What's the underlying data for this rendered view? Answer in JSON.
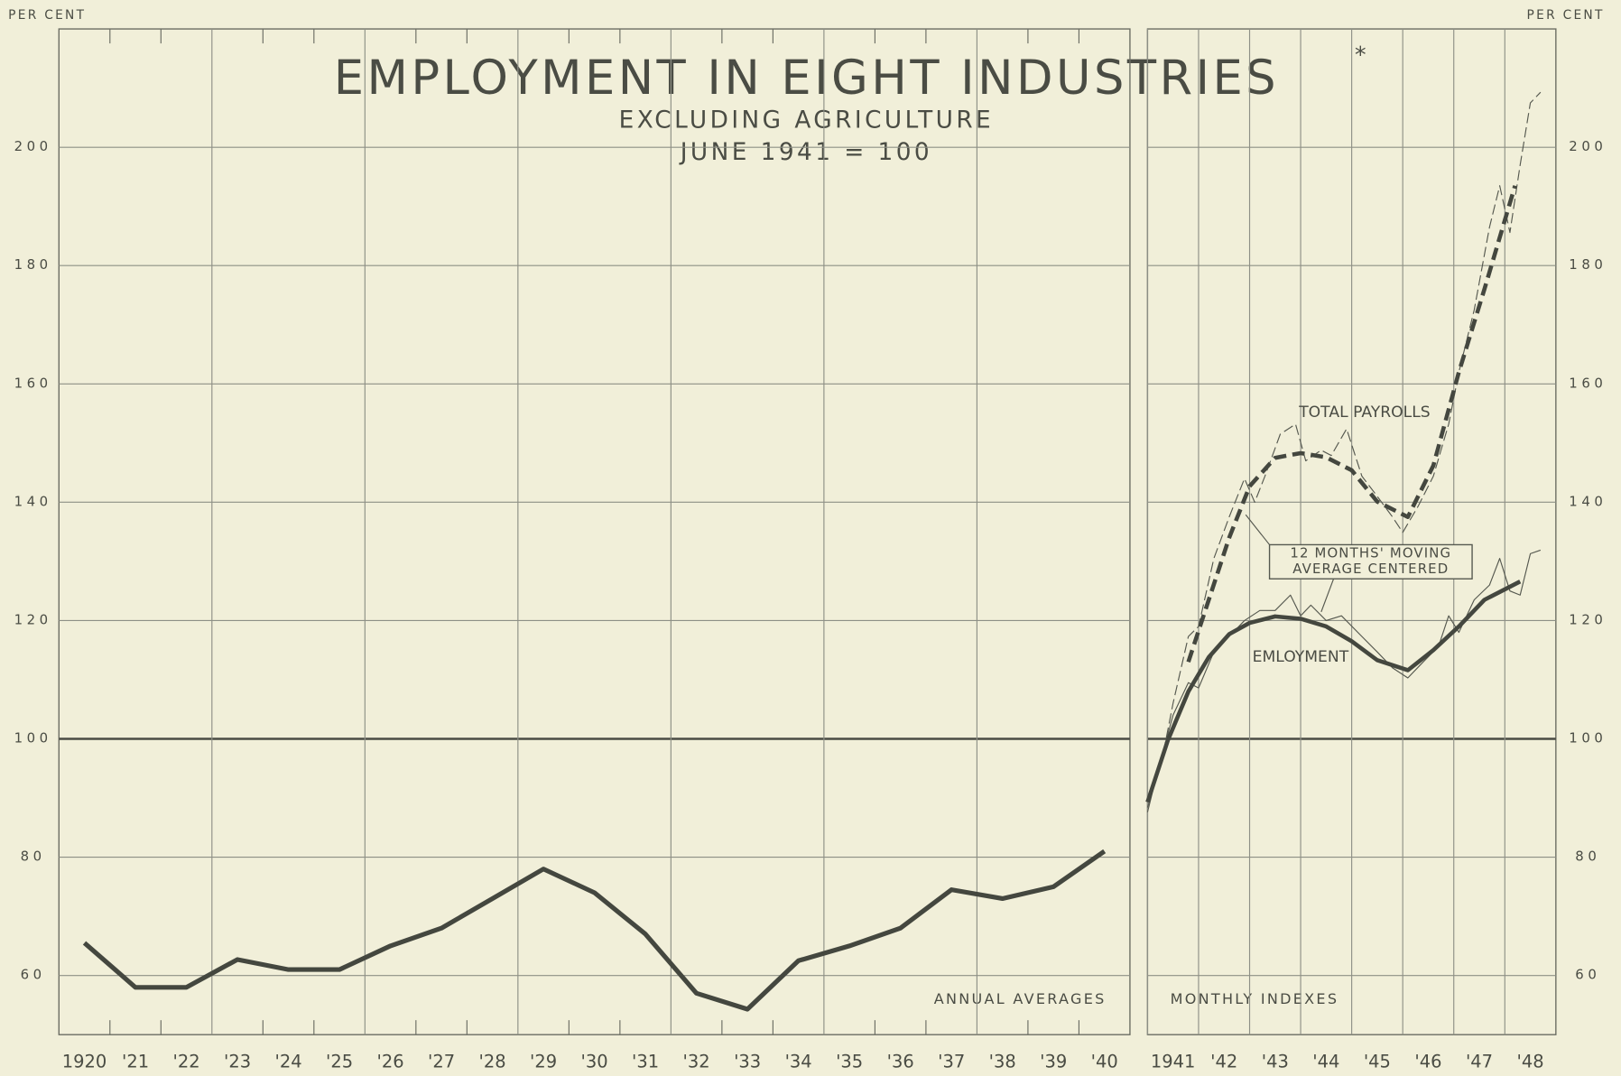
{
  "header": {
    "title": "EMPLOYMENT IN EIGHT INDUSTRIES",
    "title_mark": "*",
    "subtitle": "EXCLUDING AGRICULTURE",
    "base": "JUNE 1941 = 100"
  },
  "chart_data": [
    {
      "type": "line",
      "y_label": "PER CENT",
      "note": "ANNUAL AVERAGES",
      "color": "#44473f",
      "categories": [
        "1920",
        "'21",
        "'22",
        "'23",
        "'24",
        "'25",
        "'26",
        "'27",
        "'28",
        "'29",
        "'30",
        "'31",
        "'32",
        "'33",
        "'34",
        "'35",
        "'36",
        "'37",
        "'38",
        "'39",
        "'40"
      ],
      "values": [
        65.5,
        58,
        58,
        62.7,
        61,
        61,
        65,
        68,
        73,
        78,
        74,
        67,
        57,
        54.3,
        62.5,
        65,
        68,
        74.5,
        73,
        75,
        81
      ],
      "ylim": [
        50,
        220
      ],
      "yticks": [
        60,
        80,
        100,
        120,
        140,
        160,
        180,
        200
      ],
      "grid": true,
      "reference": 100
    },
    {
      "type": "line",
      "y_label": "PER CENT",
      "note": "MONTHLY INDEXES",
      "annotation": [
        "12 MONTHS' MOVING",
        "AVERAGE CENTERED"
      ],
      "xlim": [
        1941,
        1949
      ],
      "xticks": [
        {
          "value": 1941,
          "label": "1941"
        },
        {
          "value": 1942,
          "label": "'42"
        },
        {
          "value": 1943,
          "label": "'43"
        },
        {
          "value": 1944,
          "label": "'44"
        },
        {
          "value": 1945,
          "label": "'45"
        },
        {
          "value": 1946,
          "label": "'46"
        },
        {
          "value": 1947,
          "label": "'47"
        },
        {
          "value": 1948,
          "label": "'48"
        }
      ],
      "ylim": [
        50,
        220
      ],
      "yticks": [
        60,
        80,
        100,
        120,
        140,
        160,
        180,
        200
      ],
      "grid": true,
      "reference": 100,
      "series": [
        {
          "name": "TOTAL PAYROLLS",
          "color": "#55584f",
          "line_style": "dashed",
          "line_width": 1,
          "x": [
            1941.0,
            1941.3,
            1941.5,
            1941.8,
            1942.0,
            1942.3,
            1942.6,
            1942.9,
            1943.1,
            1943.3,
            1943.6,
            1943.9,
            1944.1,
            1944.4,
            1944.6,
            1944.9,
            1945.2,
            1945.5,
            1945.8,
            1946.0,
            1946.3,
            1946.6,
            1946.9,
            1947.1,
            1947.4,
            1947.7,
            1947.9,
            1948.1,
            1948.3,
            1948.5,
            1948.7
          ],
          "values": [
            88.4,
            97.2,
            106,
            117.3,
            119,
            130.5,
            137.5,
            144,
            140,
            144.4,
            151.5,
            153.2,
            147,
            148.8,
            147.9,
            152.4,
            144.4,
            141,
            137.5,
            134.9,
            139.3,
            144.4,
            153.2,
            162,
            172.5,
            186.5,
            193.5,
            185.6,
            197,
            207.5,
            209.3
          ]
        },
        {
          "color": "#44473f",
          "line_style": "dashed",
          "line_width": 4,
          "x": [
            1941.8,
            1942.2,
            1942.6,
            1943.0,
            1943.5,
            1944.0,
            1944.5,
            1945.0,
            1945.5,
            1946.1,
            1946.6,
            1947.1,
            1947.6,
            1948.2
          ],
          "values": [
            113,
            123.5,
            134,
            142.7,
            147.5,
            148.3,
            147.6,
            145.4,
            140.1,
            137.5,
            146.2,
            162,
            176,
            193.5
          ]
        },
        {
          "name": "EMLOYMENT",
          "color": "#55584f",
          "line_style": "solid",
          "line_width": 1,
          "x": [
            1941.0,
            1941.2,
            1941.5,
            1941.8,
            1942.0,
            1942.3,
            1942.6,
            1942.9,
            1943.2,
            1943.5,
            1943.8,
            1944.0,
            1944.2,
            1944.5,
            1944.8,
            1945.2,
            1945.5,
            1945.8,
            1946.1,
            1946.4,
            1946.7,
            1946.9,
            1947.1,
            1947.4,
            1947.7,
            1947.9,
            1948.1,
            1948.3,
            1948.5,
            1948.7
          ],
          "values": [
            87.6,
            94.6,
            104,
            109.5,
            108.6,
            114.7,
            117.3,
            120,
            121.7,
            121.7,
            124.3,
            120.8,
            122.6,
            120,
            120.8,
            117.3,
            114.7,
            112,
            110.3,
            113,
            115.6,
            120.8,
            118,
            123.5,
            126,
            130.5,
            125,
            124.3,
            131.3,
            131.9
          ]
        },
        {
          "color": "#44473f",
          "line_style": "solid",
          "line_width": 4,
          "x": [
            1941.0,
            1941.4,
            1941.8,
            1942.2,
            1942.6,
            1943.0,
            1943.5,
            1944.0,
            1944.5,
            1945.0,
            1945.5,
            1946.1,
            1946.6,
            1947.1,
            1947.6,
            1948.3
          ],
          "values": [
            89.3,
            99.8,
            108,
            113.8,
            117.7,
            119.6,
            120.7,
            120.3,
            119,
            116.5,
            113.3,
            111.6,
            115,
            119,
            123.5,
            126.6
          ]
        }
      ]
    }
  ]
}
